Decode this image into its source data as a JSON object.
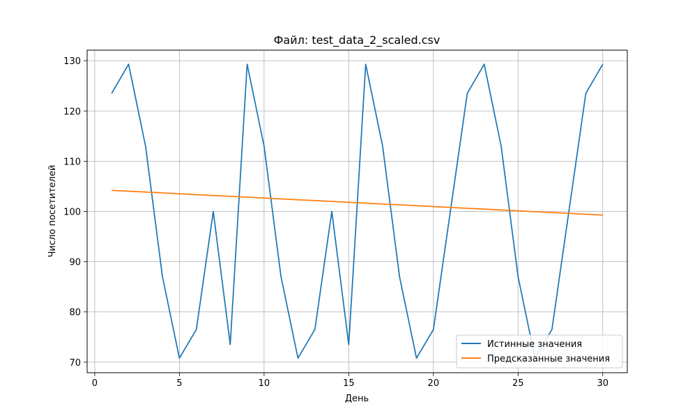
{
  "chart_data": {
    "type": "line",
    "title": "Файл: test_data_2_scaled.csv",
    "xlabel": "День",
    "ylabel": "Число посетителей",
    "xlim": [
      -0.45,
      31.45
    ],
    "ylim": [
      67.9,
      132.1
    ],
    "xticks": [
      0,
      5,
      10,
      15,
      20,
      25,
      30
    ],
    "yticks": [
      70,
      80,
      90,
      100,
      110,
      120,
      130
    ],
    "grid": true,
    "legend_position": "bottom-right",
    "x": [
      1,
      2,
      3,
      4,
      5,
      6,
      7,
      8,
      9,
      10,
      11,
      12,
      13,
      14,
      15,
      16,
      17,
      18,
      19,
      20,
      21,
      22,
      23,
      24,
      25,
      26,
      27,
      28,
      29,
      30
    ],
    "series": [
      {
        "name": "Истинные значения",
        "color": "#1f77b4",
        "values": [
          123.5,
          129.3,
          113.0,
          87.0,
          70.8,
          76.5,
          100.0,
          73.5,
          129.3,
          113.0,
          87.0,
          70.8,
          76.5,
          100.0,
          73.5,
          129.3,
          113.0,
          87.0,
          70.8,
          76.5,
          100.0,
          123.5,
          129.3,
          113.0,
          87.0,
          70.8,
          76.5,
          100.0,
          123.5,
          129.3
        ]
      },
      {
        "name": "Предсказанные значения",
        "color": "#ff7f0e",
        "values": [
          104.2,
          104.03,
          103.86,
          103.69,
          103.52,
          103.35,
          103.18,
          103.01,
          102.84,
          102.67,
          102.5,
          102.33,
          102.16,
          101.99,
          101.82,
          101.65,
          101.48,
          101.31,
          101.14,
          100.97,
          100.8,
          100.63,
          100.46,
          100.29,
          100.12,
          99.95,
          99.78,
          99.61,
          99.44,
          99.27
        ]
      }
    ]
  }
}
